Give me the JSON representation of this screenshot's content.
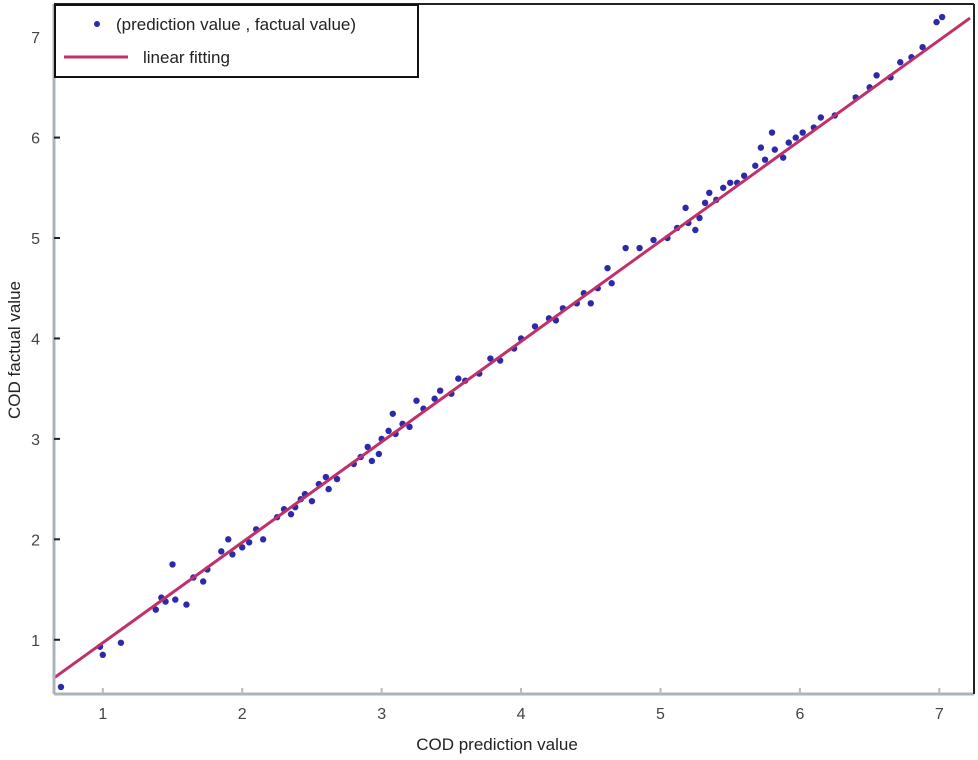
{
  "chart_data": {
    "type": "scatter",
    "title": "",
    "xlabel": "COD prediction value",
    "ylabel": "COD factual value",
    "xlim": [
      0.65,
      7.22
    ],
    "ylim": [
      0.46,
      7.33
    ],
    "xticks": [
      "1",
      "2",
      "3",
      "4",
      "5",
      "6",
      "7"
    ],
    "yticks": [
      "1",
      "2",
      "3",
      "4",
      "5",
      "6",
      "7"
    ],
    "grid": false,
    "legend": {
      "placement": "top-left",
      "entries": [
        "(prediction value , factual value)",
        "linear fitting"
      ]
    },
    "colors": {
      "points": "#2b2aa8",
      "fit": "#c0306a",
      "axis": "#aab4bc"
    },
    "fit_line": {
      "slope": 1.0,
      "intercept": -0.03
    },
    "series": [
      {
        "name": "(prediction value , factual value)",
        "points": [
          [
            0.7,
            0.53
          ],
          [
            0.98,
            0.93
          ],
          [
            1.0,
            0.85
          ],
          [
            1.13,
            0.97
          ],
          [
            1.38,
            1.3
          ],
          [
            1.42,
            1.42
          ],
          [
            1.45,
            1.38
          ],
          [
            1.5,
            1.75
          ],
          [
            1.52,
            1.4
          ],
          [
            1.6,
            1.35
          ],
          [
            1.65,
            1.62
          ],
          [
            1.72,
            1.58
          ],
          [
            1.75,
            1.7
          ],
          [
            1.85,
            1.88
          ],
          [
            1.9,
            2.0
          ],
          [
            1.93,
            1.85
          ],
          [
            2.0,
            1.92
          ],
          [
            2.05,
            1.97
          ],
          [
            2.1,
            2.1
          ],
          [
            2.15,
            2.0
          ],
          [
            2.25,
            2.22
          ],
          [
            2.3,
            2.3
          ],
          [
            2.35,
            2.25
          ],
          [
            2.38,
            2.32
          ],
          [
            2.42,
            2.4
          ],
          [
            2.45,
            2.45
          ],
          [
            2.5,
            2.38
          ],
          [
            2.55,
            2.55
          ],
          [
            2.6,
            2.62
          ],
          [
            2.62,
            2.5
          ],
          [
            2.68,
            2.6
          ],
          [
            2.8,
            2.75
          ],
          [
            2.85,
            2.82
          ],
          [
            2.9,
            2.92
          ],
          [
            2.93,
            2.78
          ],
          [
            2.98,
            2.85
          ],
          [
            3.0,
            3.0
          ],
          [
            3.05,
            3.08
          ],
          [
            3.08,
            3.25
          ],
          [
            3.1,
            3.05
          ],
          [
            3.15,
            3.15
          ],
          [
            3.2,
            3.12
          ],
          [
            3.25,
            3.38
          ],
          [
            3.3,
            3.3
          ],
          [
            3.38,
            3.4
          ],
          [
            3.42,
            3.48
          ],
          [
            3.5,
            3.45
          ],
          [
            3.55,
            3.6
          ],
          [
            3.6,
            3.58
          ],
          [
            3.7,
            3.65
          ],
          [
            3.78,
            3.8
          ],
          [
            3.85,
            3.78
          ],
          [
            3.95,
            3.9
          ],
          [
            4.0,
            4.0
          ],
          [
            4.1,
            4.12
          ],
          [
            4.2,
            4.2
          ],
          [
            4.25,
            4.18
          ],
          [
            4.3,
            4.3
          ],
          [
            4.4,
            4.35
          ],
          [
            4.45,
            4.45
          ],
          [
            4.5,
            4.35
          ],
          [
            4.55,
            4.5
          ],
          [
            4.62,
            4.7
          ],
          [
            4.65,
            4.55
          ],
          [
            4.75,
            4.9
          ],
          [
            4.85,
            4.9
          ],
          [
            4.95,
            4.98
          ],
          [
            5.05,
            5.0
          ],
          [
            5.12,
            5.1
          ],
          [
            5.18,
            5.3
          ],
          [
            5.2,
            5.15
          ],
          [
            5.25,
            5.08
          ],
          [
            5.28,
            5.2
          ],
          [
            5.32,
            5.35
          ],
          [
            5.35,
            5.45
          ],
          [
            5.4,
            5.38
          ],
          [
            5.45,
            5.5
          ],
          [
            5.5,
            5.55
          ],
          [
            5.55,
            5.55
          ],
          [
            5.6,
            5.62
          ],
          [
            5.68,
            5.72
          ],
          [
            5.72,
            5.9
          ],
          [
            5.75,
            5.78
          ],
          [
            5.8,
            6.05
          ],
          [
            5.82,
            5.88
          ],
          [
            5.88,
            5.8
          ],
          [
            5.92,
            5.95
          ],
          [
            5.97,
            6.0
          ],
          [
            6.02,
            6.05
          ],
          [
            6.1,
            6.1
          ],
          [
            6.15,
            6.2
          ],
          [
            6.25,
            6.22
          ],
          [
            6.4,
            6.4
          ],
          [
            6.5,
            6.5
          ],
          [
            6.55,
            6.62
          ],
          [
            6.65,
            6.6
          ],
          [
            6.72,
            6.75
          ],
          [
            6.8,
            6.8
          ],
          [
            6.88,
            6.9
          ],
          [
            6.98,
            7.15
          ],
          [
            7.02,
            7.2
          ]
        ]
      }
    ]
  }
}
